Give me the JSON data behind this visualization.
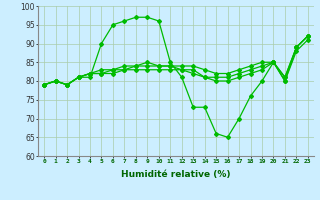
{
  "xlabel": "Humidité relative (%)",
  "background_color": "#cceeff",
  "grid_color": "#aaccaa",
  "line_color": "#00bb00",
  "ylim": [
    60,
    100
  ],
  "xlim": [
    -0.5,
    23.5
  ],
  "yticks": [
    60,
    65,
    70,
    75,
    80,
    85,
    90,
    95,
    100
  ],
  "xticks": [
    0,
    1,
    2,
    3,
    4,
    5,
    6,
    7,
    8,
    9,
    10,
    11,
    12,
    13,
    14,
    15,
    16,
    17,
    18,
    19,
    20,
    21,
    22,
    23
  ],
  "series": [
    [
      79,
      80,
      79,
      81,
      81,
      90,
      95,
      96,
      97,
      97,
      96,
      85,
      81,
      73,
      73,
      66,
      65,
      70,
      76,
      80,
      85,
      80,
      89,
      92
    ],
    [
      79,
      80,
      79,
      81,
      82,
      82,
      82,
      83,
      83,
      83,
      83,
      83,
      83,
      83,
      81,
      81,
      81,
      82,
      83,
      84,
      85,
      80,
      88,
      91
    ],
    [
      79,
      80,
      79,
      81,
      82,
      82,
      83,
      83,
      84,
      84,
      84,
      84,
      84,
      84,
      83,
      82,
      82,
      83,
      84,
      85,
      85,
      81,
      89,
      92
    ],
    [
      79,
      80,
      79,
      81,
      82,
      83,
      83,
      84,
      84,
      85,
      84,
      84,
      83,
      82,
      81,
      80,
      80,
      81,
      82,
      83,
      85,
      81,
      89,
      92
    ]
  ]
}
